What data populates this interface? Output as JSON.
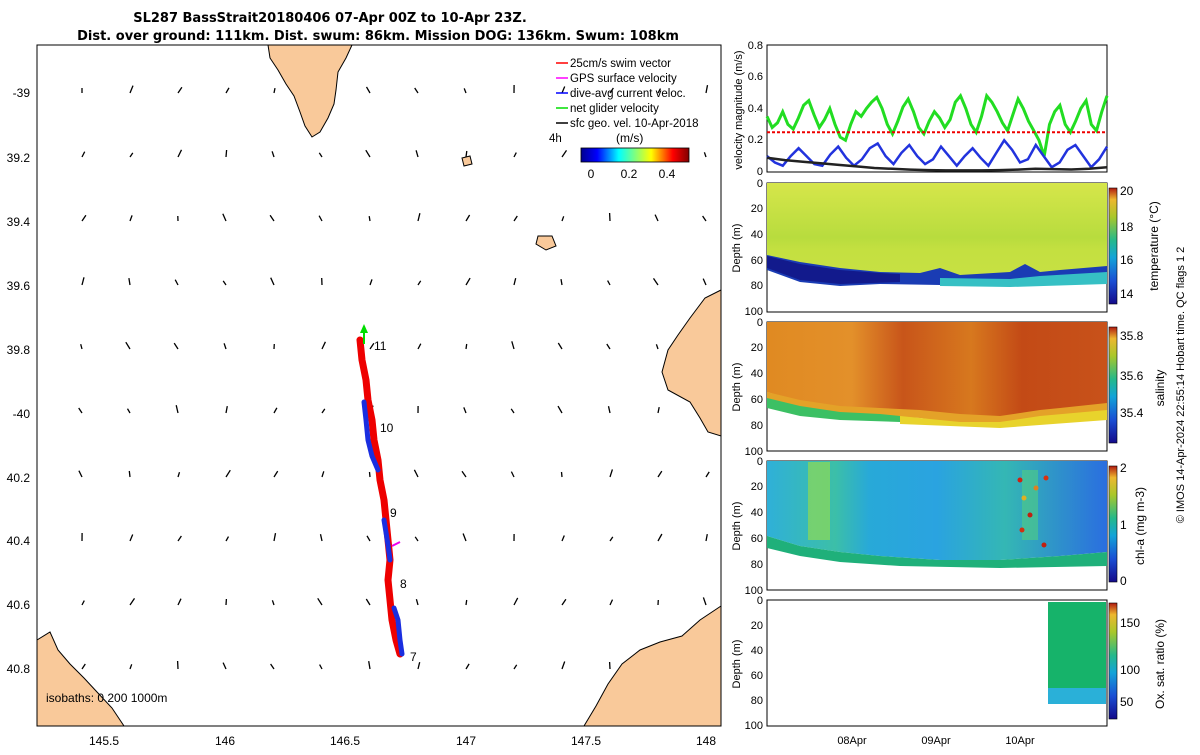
{
  "title": {
    "line1": "SL287 BassStrait20180406 07-Apr 00Z to 10-Apr 23Z.",
    "line2": "Dist. over ground: 111km. Dist. swum: 86km. Mission DOG: 136km. Swum: 108km"
  },
  "map": {
    "lon_ticks": [
      "145.5",
      "146",
      "146.5",
      "147",
      "147.5",
      "148"
    ],
    "lat_ticks": [
      "-39",
      "39.2",
      "39.4",
      "39.6",
      "39.8",
      "-40",
      "40.2",
      "40.4",
      "40.6",
      "40.8"
    ],
    "legend": [
      {
        "label": "25cm/s swim vector",
        "color": "#ff0000"
      },
      {
        "label": "GPS surface velocity",
        "color": "#ff00ff"
      },
      {
        "label": "dive-avg current veloc.",
        "color": "#0000ff"
      },
      {
        "label": "net glider velocity",
        "color": "#00dd00"
      },
      {
        "label": "sfc geo. vel. 10-Apr-2018",
        "color": "#000000"
      }
    ],
    "colorbar": {
      "label": "(m/s)",
      "ticks": [
        "0",
        "0.2",
        "0.4"
      ]
    },
    "scale_label": "4h",
    "isobath_label": "isobaths: 0   200  1000m",
    "track_labels": [
      "11",
      "10",
      "9",
      "8",
      "7"
    ],
    "land_color": "#f9c99a"
  },
  "chart_data": [
    {
      "type": "line",
      "ylabel": "velocity magnitude (m/s)",
      "ylim": [
        0,
        0.8
      ],
      "yticks": [
        "0",
        "0.2",
        "0.4",
        "0.6",
        "0.8"
      ],
      "series": [
        {
          "color": "#22dd22",
          "values": [
            0.35,
            0.28,
            0.31,
            0.38,
            0.3,
            0.27,
            0.34,
            0.42,
            0.45,
            0.36,
            0.28,
            0.33,
            0.4,
            0.3,
            0.22,
            0.2,
            0.3,
            0.38,
            0.35,
            0.4,
            0.44,
            0.47,
            0.4,
            0.3,
            0.24,
            0.32,
            0.41,
            0.46,
            0.38,
            0.28,
            0.24,
            0.32,
            0.38,
            0.34,
            0.28,
            0.33,
            0.44,
            0.48,
            0.4,
            0.3,
            0.25,
            0.35,
            0.48,
            0.44,
            0.38,
            0.31,
            0.26,
            0.36,
            0.46,
            0.4,
            0.32,
            0.26,
            0.2,
            0.1,
            0.3,
            0.38,
            0.42,
            0.3,
            0.25,
            0.32,
            0.4,
            0.45,
            0.3,
            0.26,
            0.38,
            0.48
          ]
        },
        {
          "color": "#ee0000",
          "values": [
            0.25,
            0.25,
            0.25,
            0.25,
            0.25,
            0.25,
            0.25,
            0.25,
            0.25,
            0.25,
            0.25,
            0.25,
            0.25,
            0.25,
            0.25,
            0.25,
            0.25,
            0.25,
            0.25,
            0.25,
            0.25,
            0.25,
            0.25,
            0.25,
            0.25,
            0.25,
            0.25,
            0.25,
            0.25,
            0.25,
            0.25,
            0.25,
            0.25,
            0.25,
            0.25,
            0.25,
            0.25,
            0.25,
            0.25,
            0.25
          ]
        },
        {
          "color": "#2233dd",
          "values": [
            0.1,
            0.06,
            0.04,
            0.1,
            0.15,
            0.1,
            0.05,
            0.04,
            0.11,
            0.16,
            0.09,
            0.04,
            0.08,
            0.15,
            0.18,
            0.1,
            0.05,
            0.12,
            0.17,
            0.1,
            0.05,
            0.08,
            0.16,
            0.1,
            0.04,
            0.1,
            0.15,
            0.09,
            0.04,
            0.12,
            0.2,
            0.14,
            0.06,
            0.08,
            0.17,
            0.1,
            0.03,
            0.06,
            0.14,
            0.17,
            0.1,
            0.03,
            0.08,
            0.16
          ]
        },
        {
          "color": "#222222",
          "values": [
            0.09,
            0.075,
            0.065,
            0.055,
            0.045,
            0.035,
            0.025,
            0.02,
            0.015,
            0.012,
            0.01,
            0.01,
            0.01,
            0.012,
            0.015,
            0.02,
            0.018,
            0.016,
            0.02,
            0.03
          ]
        }
      ]
    },
    {
      "type": "heatmap",
      "xlabel": "",
      "ylabel": "Depth (m)",
      "ylim": [
        0,
        100
      ],
      "yticks": [
        "0",
        "20",
        "40",
        "60",
        "80",
        "100"
      ],
      "colorbar_label": "temperature (°C)",
      "colorbar_ticks": [
        "20",
        "18",
        "16",
        "14"
      ]
    },
    {
      "type": "heatmap",
      "ylabel": "Depth (m)",
      "ylim": [
        0,
        100
      ],
      "yticks": [
        "0",
        "20",
        "40",
        "60",
        "80",
        "100"
      ],
      "colorbar_label": "salinity",
      "colorbar_ticks": [
        "35.8",
        "35.6",
        "35.4"
      ]
    },
    {
      "type": "heatmap",
      "ylabel": "Depth (m)",
      "ylim": [
        0,
        100
      ],
      "yticks": [
        "0",
        "20",
        "40",
        "60",
        "80",
        "100"
      ],
      "colorbar_label": "chl-a (mg m-3)",
      "colorbar_ticks": [
        "2",
        "1",
        "0"
      ]
    },
    {
      "type": "heatmap",
      "ylabel": "Depth (m)",
      "ylim": [
        0,
        100
      ],
      "yticks": [
        "0",
        "20",
        "40",
        "60",
        "80",
        "100"
      ],
      "xticks": [
        "08Apr",
        "09Apr",
        "10Apr"
      ],
      "colorbar_label": "Ox. sat. ratio (%)",
      "colorbar_ticks": [
        "150",
        "100",
        "50"
      ]
    }
  ],
  "side_note": "© IMOS 14-Apr-2024 22:55:14 Hobart time. QC flags 1  2"
}
